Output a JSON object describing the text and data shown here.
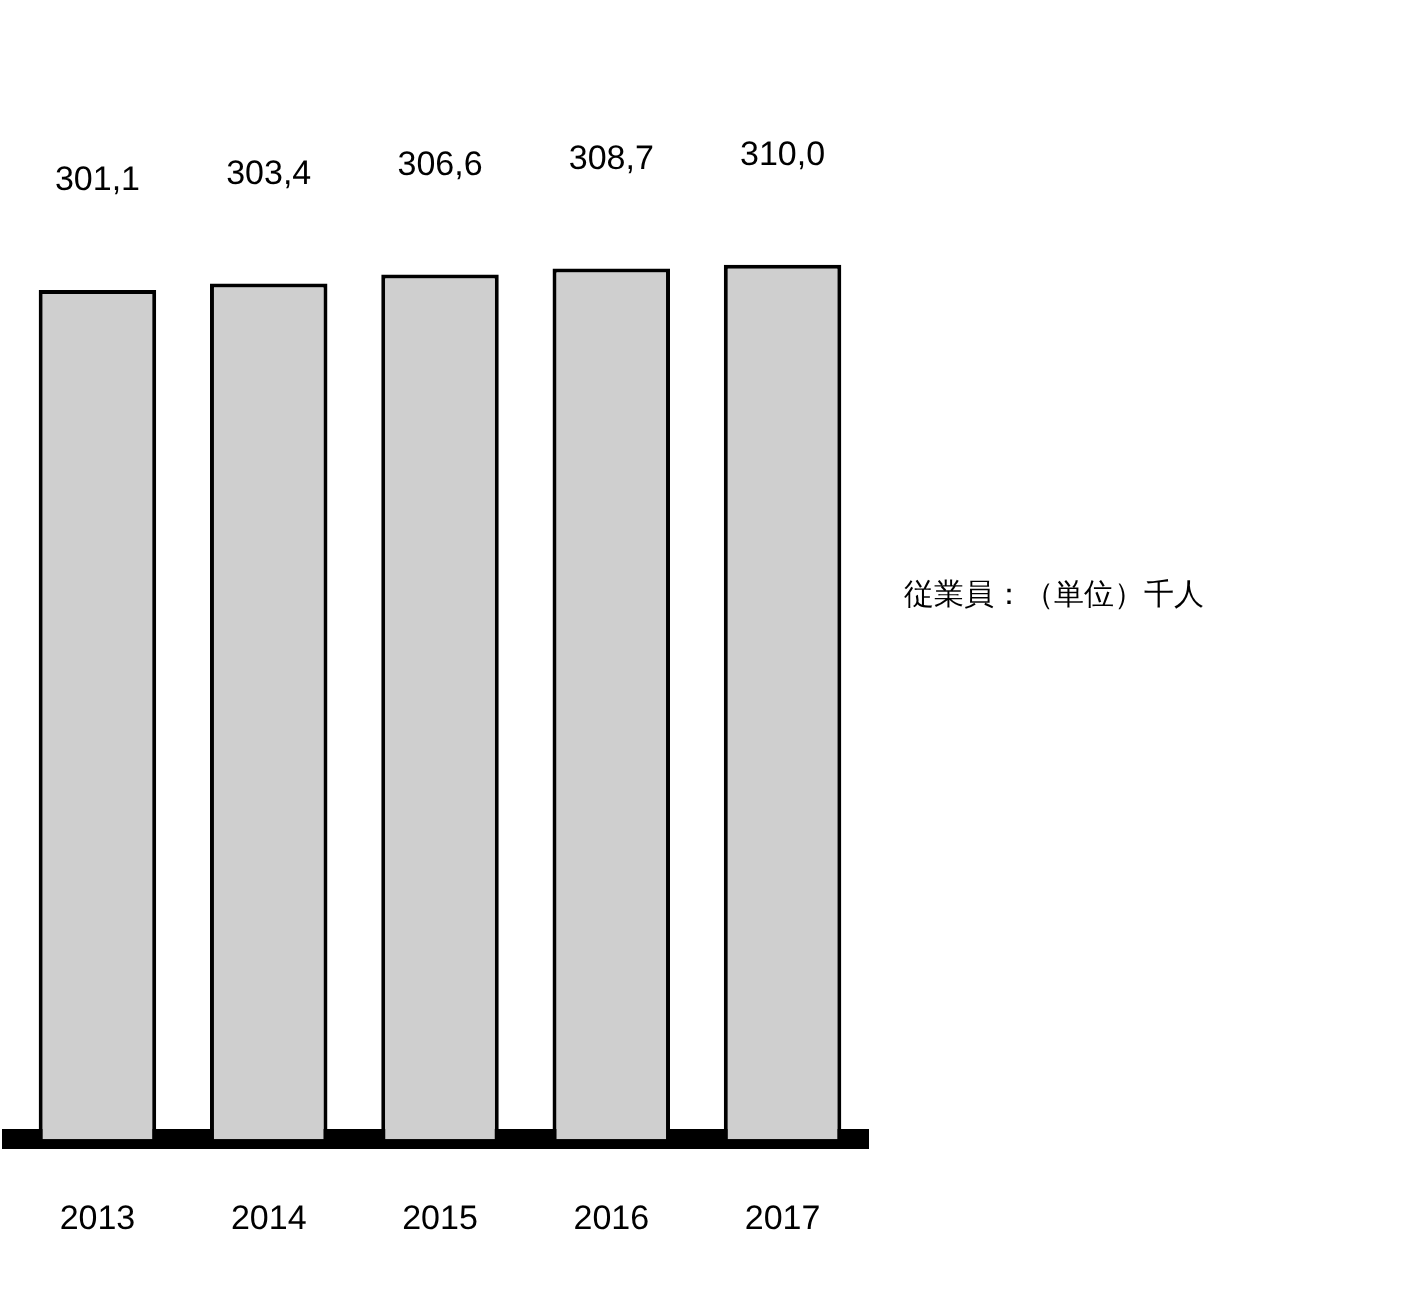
{
  "chart_data": {
    "type": "bar",
    "categories": [
      "2013",
      "2014",
      "2015",
      "2016",
      "2017"
    ],
    "values": [
      301.1,
      303.4,
      306.6,
      308.7,
      310.0
    ],
    "value_labels": [
      "301,1",
      "303,4",
      "306,6",
      "308,7",
      "310,0"
    ],
    "color": "#cfcfcf",
    "annotations": [
      "従業員：（単位）千人"
    ],
    "grid": false,
    "legend": false
  }
}
